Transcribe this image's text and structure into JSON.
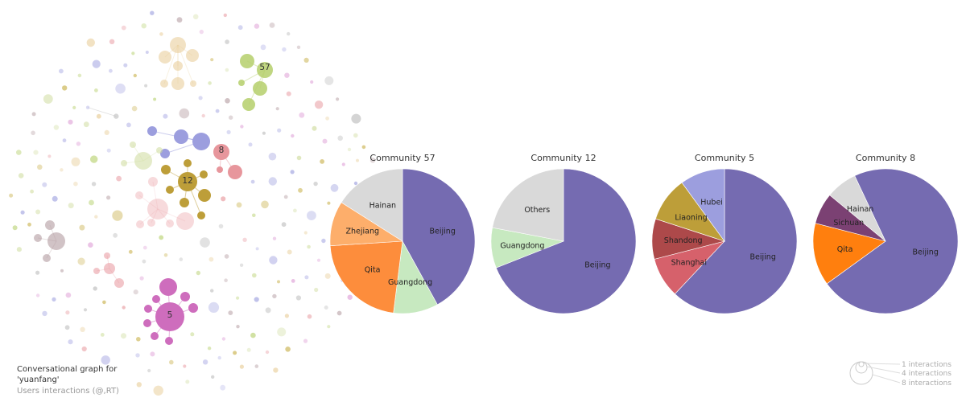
{
  "graph": {
    "caption_line1": "Conversational graph for",
    "caption_line2": "'yuanfang'",
    "subtitle": "Users interactions (@,RT)",
    "community_labels": [
      "57",
      "12",
      "8",
      "5"
    ]
  },
  "legend": {
    "entries": [
      "1 interactions",
      "4 interactions",
      "8 interactions"
    ]
  },
  "chart_data": [
    {
      "type": "pie",
      "title": "Community 57",
      "labels": [
        "Beijing",
        "Guangdong",
        "Qita",
        "Zhejiang",
        "Hainan"
      ],
      "values": [
        42,
        10,
        22,
        10,
        16
      ],
      "colors": [
        "#756bb1",
        "#c7e9c0",
        "#fd8d3c",
        "#fdae6b",
        "#d9d9d9"
      ]
    },
    {
      "type": "pie",
      "title": "Community 12",
      "labels": [
        "Beijing",
        "Guangdong",
        "Others"
      ],
      "values": [
        69,
        9,
        22
      ],
      "colors": [
        "#756bb1",
        "#c7e9c0",
        "#d9d9d9"
      ]
    },
    {
      "type": "pie",
      "title": "Community 5",
      "labels": [
        "Beijing",
        "Shanghai",
        "Shandong",
        "Liaoning",
        "Hubei"
      ],
      "values": [
        62,
        9,
        9,
        10,
        10
      ],
      "colors": [
        "#756bb1",
        "#d6616b",
        "#ad494a",
        "#bd9e39",
        "#9c9ede"
      ]
    },
    {
      "type": "pie",
      "title": "Community 8",
      "labels": [
        "Beijing",
        "Qita",
        "Sichuan",
        "Hainan"
      ],
      "values": [
        72,
        14,
        7,
        7
      ],
      "colors": [
        "#756bb1",
        "#ff7f0e",
        "#7b4173",
        "#d9d9d9"
      ],
      "start": "Hainan"
    }
  ]
}
